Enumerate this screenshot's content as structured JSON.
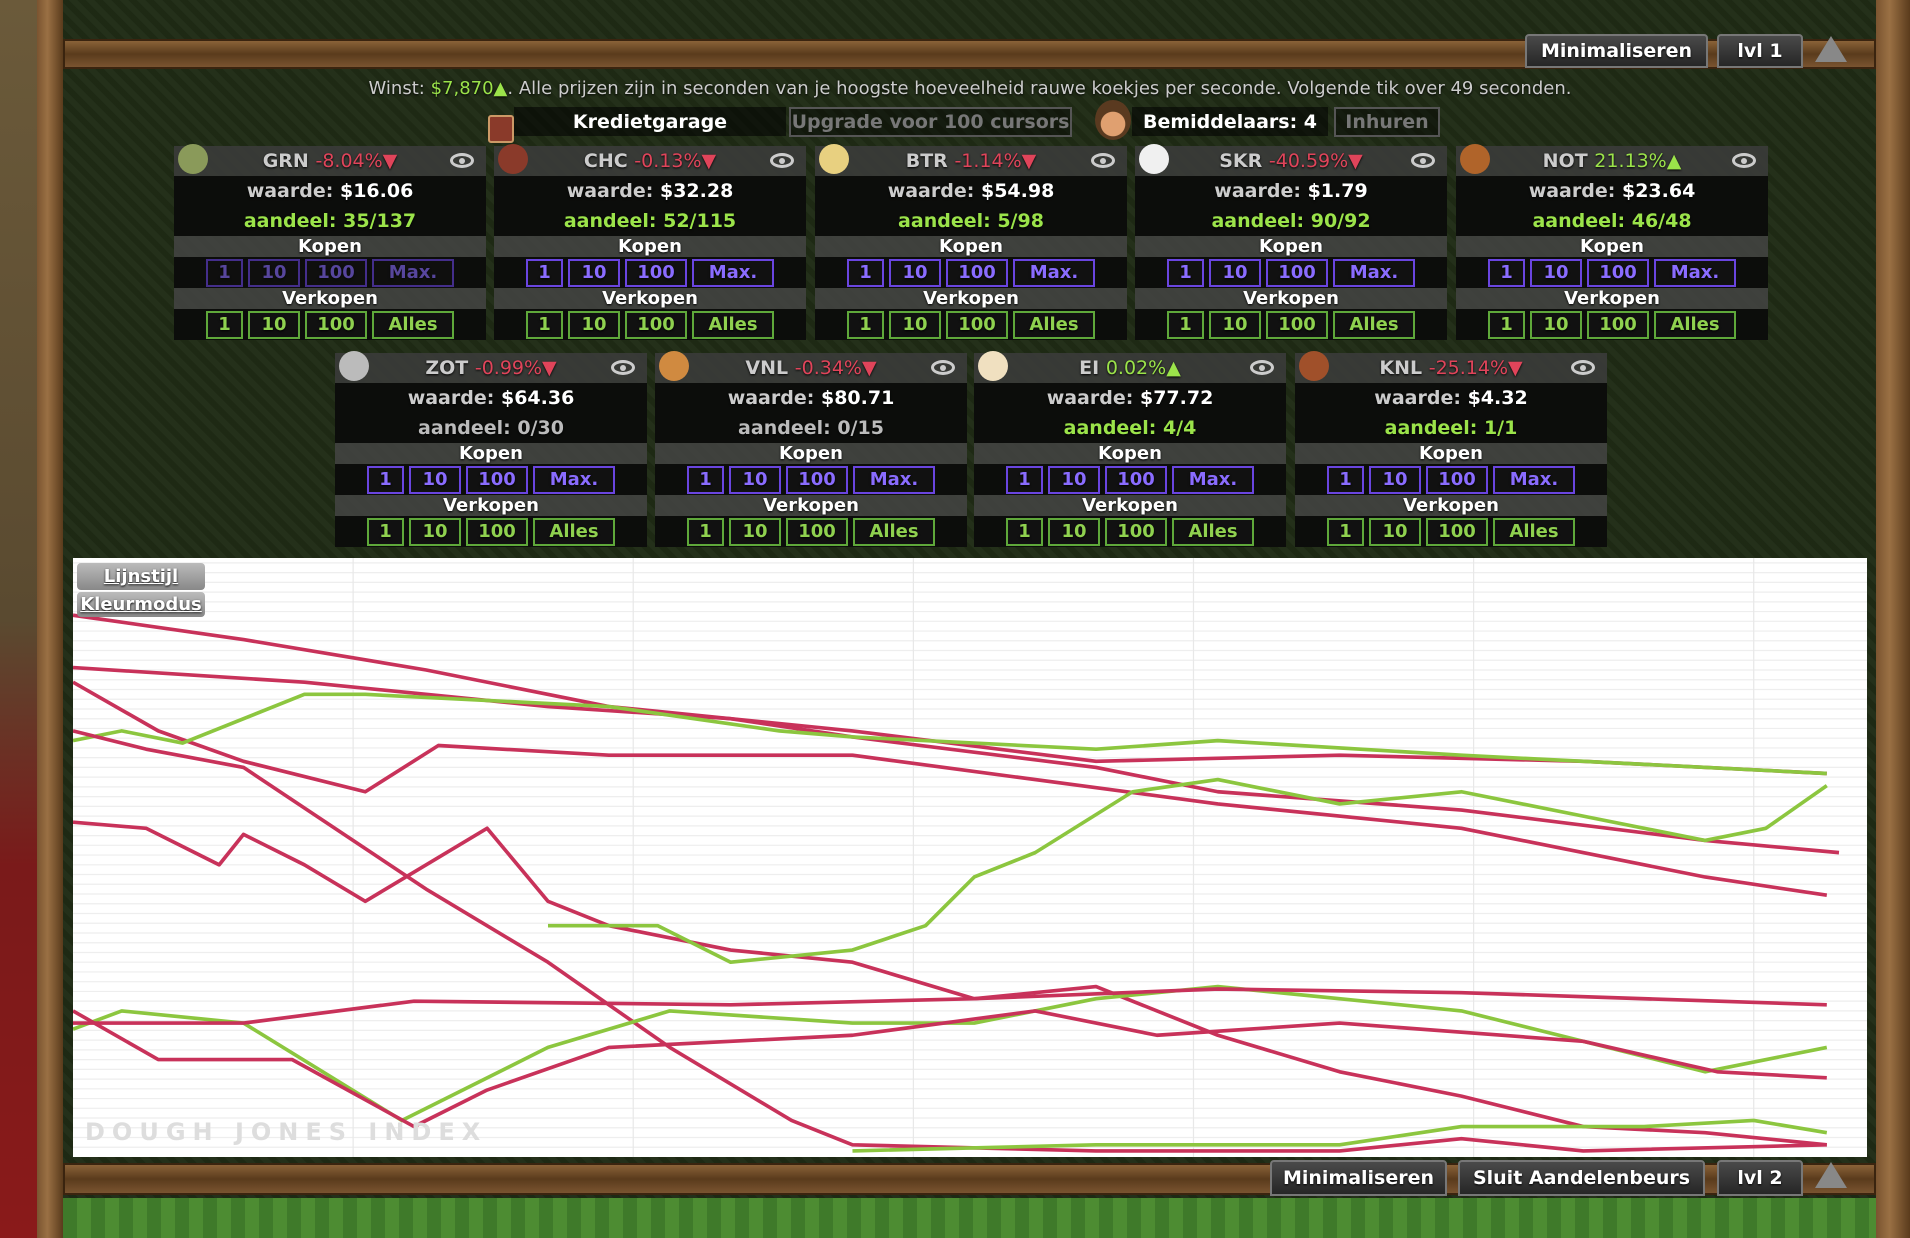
{
  "top_bar": {
    "minimize": "Minimaliseren",
    "level": "lvl 1"
  },
  "info": {
    "profit_label": "Winst:",
    "profit": "$7,870▲",
    "text": ". Alle prijzen zijn in seconden van je hoogste hoeveelheid rauwe koekjes per seconde. Volgende tik over 49 seconden."
  },
  "office": {
    "name": "Kredietgarage",
    "upgrade": "Upgrade voor 100 cursors"
  },
  "brokers": {
    "label": "Bemiddelaars: 4",
    "hire": "Inhuren"
  },
  "labels": {
    "value": "waarde:",
    "shares": "aandeel:",
    "buy": "Kopen",
    "sell": "Verkopen",
    "buy_buttons": [
      "1",
      "10",
      "100",
      "Max."
    ],
    "sell_buttons": [
      "1",
      "10",
      "100",
      "Alles"
    ]
  },
  "stocks": [
    {
      "ticker": "GRN",
      "change": "-8.04%▼",
      "value": "$16.06",
      "shares": "35/137"
    },
    {
      "ticker": "CHC",
      "change": "-0.13%▼",
      "value": "$32.28",
      "shares": "52/115"
    },
    {
      "ticker": "BTR",
      "change": "-1.14%▼",
      "value": "$54.98",
      "shares": "5/98"
    },
    {
      "ticker": "SKR",
      "change": "-40.59%▼",
      "value": "$1.79",
      "shares": "90/92"
    },
    {
      "ticker": "NOT",
      "change": "21.13%▲",
      "value": "$23.64",
      "shares": "46/48"
    },
    {
      "ticker": "ZOT",
      "change": "-0.99%▼",
      "value": "$64.36",
      "shares": "0/30"
    },
    {
      "ticker": "VNL",
      "change": "-0.34%▼",
      "value": "$80.71",
      "shares": "0/15"
    },
    {
      "ticker": "EI",
      "change": "0.02%▲",
      "value": "$77.72",
      "shares": "4/4"
    },
    {
      "ticker": "KNL",
      "change": "-25.14%▼",
      "value": "$4.32",
      "shares": "1/1"
    }
  ],
  "chart": {
    "line_style": "Lijnstijl",
    "color_mode": "Kleurmodus",
    "watermark": "DOUGH JONES INDEX"
  },
  "bottom_bar": {
    "minimize": "Minimaliseren",
    "close": "Sluit Aandelenbeurs",
    "level": "lvl 2"
  }
}
